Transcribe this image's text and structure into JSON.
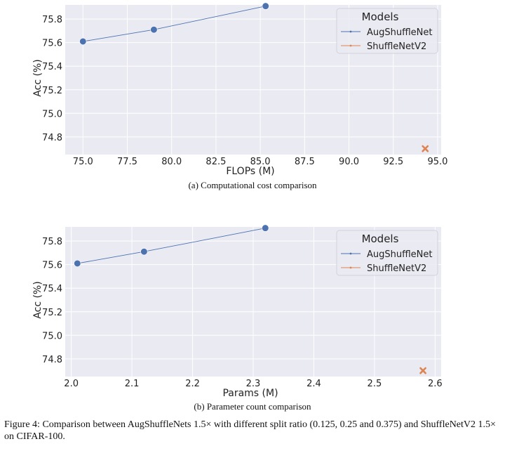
{
  "chart_data": [
    {
      "id": "a",
      "type": "scatter",
      "xlabel": "FLOPs (M)",
      "ylabel": "Acc (%)",
      "xlim": [
        74.0,
        95.2
      ],
      "ylim": [
        74.65,
        75.92
      ],
      "xticks": [
        "75.0",
        "77.5",
        "80.0",
        "82.5",
        "85.0",
        "87.5",
        "90.0",
        "92.5",
        "95.0"
      ],
      "yticks": [
        "74.8",
        "75.0",
        "75.2",
        "75.4",
        "75.6",
        "75.8"
      ],
      "grid": true,
      "legend": {
        "title": "Models",
        "position": "top-right"
      },
      "series": [
        {
          "name": "AugShuffleNet",
          "marker": "circle",
          "color": "#4c72b0",
          "connected": true,
          "x": [
            75.0,
            79.0,
            85.3
          ],
          "y": [
            75.61,
            75.71,
            75.91
          ]
        },
        {
          "name": "ShuffleNetV2",
          "marker": "x",
          "color": "#dd8452",
          "connected": false,
          "x": [
            94.3
          ],
          "y": [
            74.7
          ]
        }
      ],
      "caption": "(a) Computational cost comparison"
    },
    {
      "id": "b",
      "type": "scatter",
      "xlabel": "Params (M)",
      "ylabel": "Acc (%)",
      "xlim": [
        1.99,
        2.61
      ],
      "ylim": [
        74.65,
        75.92
      ],
      "xticks": [
        "2.0",
        "2.1",
        "2.2",
        "2.3",
        "2.4",
        "2.5",
        "2.6"
      ],
      "yticks": [
        "74.8",
        "75.0",
        "75.2",
        "75.4",
        "75.6",
        "75.8"
      ],
      "grid": true,
      "legend": {
        "title": "Models",
        "position": "top-right"
      },
      "series": [
        {
          "name": "AugShuffleNet",
          "marker": "circle",
          "color": "#4c72b0",
          "connected": true,
          "x": [
            2.01,
            2.12,
            2.32
          ],
          "y": [
            75.61,
            75.71,
            75.91
          ]
        },
        {
          "name": "ShuffleNetV2",
          "marker": "x",
          "color": "#dd8452",
          "connected": false,
          "x": [
            2.58
          ],
          "y": [
            74.7
          ]
        }
      ],
      "caption": "(b) Parameter count comparison"
    }
  ],
  "figure_caption": "Figure 4: Comparison between AugShuffleNets 1.5× with different split ratio (0.125, 0.25 and 0.375) and ShuffleNetV2 1.5× on CIFAR-100."
}
